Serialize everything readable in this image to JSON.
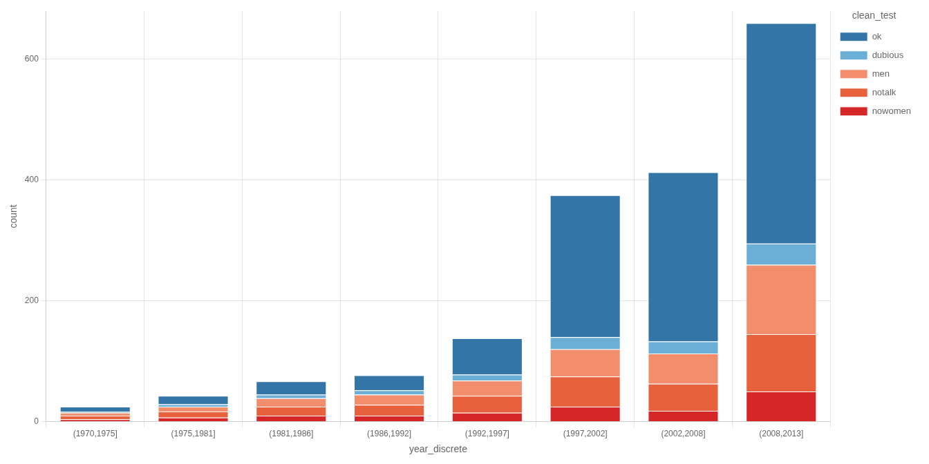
{
  "chart_data": {
    "type": "bar",
    "stacked": true,
    "grid": true,
    "legend": "right",
    "legend_title": "clean_test",
    "xlabel": "year_discrete",
    "ylabel": "count",
    "categories": [
      "(1970,1975]",
      "(1975,1981]",
      "(1981,1986]",
      "(1986,1992]",
      "(1992,1997]",
      "(1997,2002]",
      "(2002,2008]",
      "(2008,2013]"
    ],
    "series": [
      {
        "name": "nowomen",
        "color": "#d62728",
        "values": [
          4,
          7,
          10,
          10,
          15,
          25,
          18,
          50
        ]
      },
      {
        "name": "notalk",
        "color": "#e8613d",
        "values": [
          6,
          10,
          15,
          18,
          28,
          50,
          45,
          95
        ]
      },
      {
        "name": "men",
        "color": "#f28e6b",
        "values": [
          5,
          8,
          14,
          17,
          25,
          45,
          50,
          115
        ]
      },
      {
        "name": "dubious",
        "color": "#6baed6",
        "values": [
          2,
          4,
          6,
          7,
          10,
          20,
          20,
          35
        ]
      },
      {
        "name": "ok",
        "color": "#3475a8",
        "values": [
          8,
          14,
          22,
          25,
          60,
          235,
          280,
          365
        ]
      }
    ],
    "ylim": [
      0,
      680
    ],
    "yticks": [
      0,
      200,
      400,
      600
    ]
  }
}
